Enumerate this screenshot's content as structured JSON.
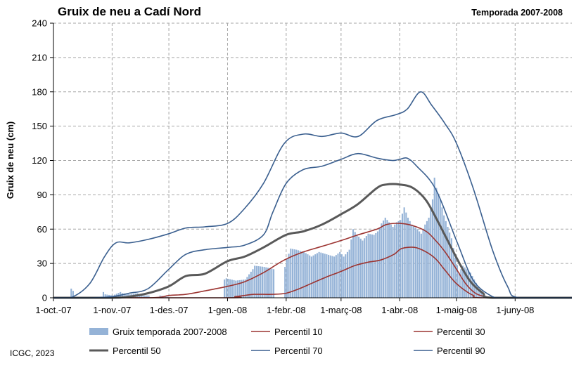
{
  "chart_data": {
    "type": "area",
    "title": "Gruix de neu a Cadí Nord",
    "subtitle": "Temporada 2007-2008",
    "ylabel": "Gruix de neu (cm)",
    "xlabel": "",
    "ylim": [
      0,
      240
    ],
    "yticks": [
      0,
      30,
      60,
      90,
      120,
      150,
      180,
      210,
      240
    ],
    "x_range": [
      "2007-10-01",
      "2008-07-01"
    ],
    "xticks": [
      {
        "date": "2007-10-01",
        "label": "1-oct.-07"
      },
      {
        "date": "2007-11-01",
        "label": "1-nov.-07"
      },
      {
        "date": "2007-12-01",
        "label": "1-des.-07"
      },
      {
        "date": "2008-01-01",
        "label": "1-gen.-08"
      },
      {
        "date": "2008-02-01",
        "label": "1-febr.-08"
      },
      {
        "date": "2008-03-01",
        "label": "1-març-08"
      },
      {
        "date": "2008-04-01",
        "label": "1-abr.-08"
      },
      {
        "date": "2008-05-01",
        "label": "1-maig-08"
      },
      {
        "date": "2008-06-01",
        "label": "1-juny-08"
      }
    ],
    "grid": true,
    "legend_position": "bottom",
    "bars": {
      "name": "Gruix temporada 2007-2008",
      "color": "#95b3d7",
      "points": [
        [
          "2007-10-10",
          8
        ],
        [
          "2007-10-11",
          6
        ],
        [
          "2007-10-26",
          1
        ],
        [
          "2007-10-27",
          5
        ],
        [
          "2007-10-28",
          3
        ],
        [
          "2007-11-01",
          2
        ],
        [
          "2007-11-05",
          5
        ],
        [
          "2007-11-06",
          4
        ],
        [
          "2007-11-10",
          3
        ],
        [
          "2007-11-14",
          4
        ],
        [
          "2007-11-15",
          3
        ],
        [
          "2007-11-16",
          2
        ],
        [
          "2007-11-20",
          2
        ],
        [
          "2007-11-26",
          2
        ],
        [
          "2007-11-30",
          1
        ],
        [
          "2007-12-30",
          16
        ],
        [
          "2007-12-31",
          17
        ],
        [
          "2008-01-05",
          15
        ],
        [
          "2008-01-10",
          16
        ],
        [
          "2008-01-14",
          25
        ],
        [
          "2008-01-15",
          28
        ],
        [
          "2008-01-20",
          27
        ],
        [
          "2008-01-25",
          25
        ],
        [
          "2008-01-31",
          27
        ],
        [
          "2008-02-01",
          34
        ],
        [
          "2008-02-03",
          43
        ],
        [
          "2008-02-06",
          42
        ],
        [
          "2008-02-10",
          40
        ],
        [
          "2008-02-14",
          36
        ],
        [
          "2008-02-18",
          40
        ],
        [
          "2008-02-22",
          38
        ],
        [
          "2008-02-26",
          36
        ],
        [
          "2008-02-29",
          40
        ],
        [
          "2008-03-02",
          36
        ],
        [
          "2008-03-05",
          42
        ],
        [
          "2008-03-07",
          60
        ],
        [
          "2008-03-09",
          55
        ],
        [
          "2008-03-12",
          50
        ],
        [
          "2008-03-15",
          56
        ],
        [
          "2008-03-18",
          55
        ],
        [
          "2008-03-20",
          58
        ],
        [
          "2008-03-22",
          65
        ],
        [
          "2008-03-24",
          70
        ],
        [
          "2008-03-26",
          66
        ],
        [
          "2008-03-28",
          62
        ],
        [
          "2008-03-30",
          66
        ],
        [
          "2008-04-01",
          68
        ],
        [
          "2008-04-03",
          79
        ],
        [
          "2008-04-05",
          70
        ],
        [
          "2008-04-07",
          64
        ],
        [
          "2008-04-10",
          60
        ],
        [
          "2008-04-12",
          56
        ],
        [
          "2008-04-14",
          64
        ],
        [
          "2008-04-16",
          70
        ],
        [
          "2008-04-18",
          86
        ],
        [
          "2008-04-19",
          105
        ],
        [
          "2008-04-20",
          96
        ],
        [
          "2008-04-22",
          86
        ],
        [
          "2008-04-24",
          72
        ],
        [
          "2008-04-26",
          62
        ],
        [
          "2008-04-28",
          52
        ],
        [
          "2008-04-30",
          35
        ],
        [
          "2008-05-02",
          22
        ],
        [
          "2008-05-04",
          28
        ],
        [
          "2008-05-06",
          25
        ],
        [
          "2008-05-08",
          22
        ],
        [
          "2008-05-10",
          16
        ],
        [
          "2008-05-12",
          10
        ],
        [
          "2008-05-14",
          5
        ],
        [
          "2008-05-16",
          2
        ]
      ]
    },
    "series": [
      {
        "name": "Percentil 10",
        "color": "#9c3431",
        "width": 1.6,
        "points": [
          [
            "2007-10-01",
            0
          ],
          [
            "2007-12-31",
            0
          ],
          [
            "2008-01-05",
            1
          ],
          [
            "2008-01-10",
            2
          ],
          [
            "2008-01-15",
            3
          ],
          [
            "2008-01-25",
            3
          ],
          [
            "2008-02-01",
            4
          ],
          [
            "2008-02-08",
            8
          ],
          [
            "2008-02-15",
            13
          ],
          [
            "2008-02-22",
            18
          ],
          [
            "2008-03-01",
            23
          ],
          [
            "2008-03-08",
            28
          ],
          [
            "2008-03-15",
            31
          ],
          [
            "2008-03-22",
            33
          ],
          [
            "2008-03-29",
            38
          ],
          [
            "2008-04-02",
            43
          ],
          [
            "2008-04-09",
            44
          ],
          [
            "2008-04-15",
            40
          ],
          [
            "2008-04-20",
            34
          ],
          [
            "2008-04-25",
            24
          ],
          [
            "2008-04-30",
            14
          ],
          [
            "2008-05-05",
            7
          ],
          [
            "2008-05-10",
            2
          ],
          [
            "2008-05-15",
            0
          ],
          [
            "2008-07-01",
            0
          ]
        ]
      },
      {
        "name": "Percentil 30",
        "color": "#9c3431",
        "width": 1.6,
        "points": [
          [
            "2007-10-01",
            0
          ],
          [
            "2007-11-20",
            0
          ],
          [
            "2007-12-01",
            2
          ],
          [
            "2007-12-10",
            3
          ],
          [
            "2007-12-20",
            6
          ],
          [
            "2008-01-01",
            10
          ],
          [
            "2008-01-10",
            14
          ],
          [
            "2008-01-20",
            22
          ],
          [
            "2008-01-31",
            33
          ],
          [
            "2008-02-10",
            40
          ],
          [
            "2008-02-20",
            45
          ],
          [
            "2008-03-01",
            50
          ],
          [
            "2008-03-10",
            55
          ],
          [
            "2008-03-20",
            60
          ],
          [
            "2008-03-25",
            64
          ],
          [
            "2008-04-01",
            65
          ],
          [
            "2008-04-08",
            63
          ],
          [
            "2008-04-15",
            58
          ],
          [
            "2008-04-20",
            50
          ],
          [
            "2008-04-25",
            40
          ],
          [
            "2008-05-01",
            25
          ],
          [
            "2008-05-06",
            12
          ],
          [
            "2008-05-11",
            4
          ],
          [
            "2008-05-16",
            1
          ],
          [
            "2008-05-20",
            0
          ],
          [
            "2008-07-01",
            0
          ]
        ]
      },
      {
        "name": "Percentil 50",
        "color": "#595959",
        "width": 3,
        "points": [
          [
            "2007-10-01",
            0
          ],
          [
            "2007-11-01",
            0
          ],
          [
            "2007-11-10",
            1
          ],
          [
            "2007-11-20",
            4
          ],
          [
            "2007-12-01",
            10
          ],
          [
            "2007-12-10",
            19
          ],
          [
            "2007-12-20",
            21
          ],
          [
            "2008-01-01",
            32
          ],
          [
            "2008-01-10",
            36
          ],
          [
            "2008-01-20",
            44
          ],
          [
            "2008-02-01",
            55
          ],
          [
            "2008-02-10",
            58
          ],
          [
            "2008-02-20",
            64
          ],
          [
            "2008-03-01",
            73
          ],
          [
            "2008-03-10",
            82
          ],
          [
            "2008-03-20",
            96
          ],
          [
            "2008-03-25",
            99
          ],
          [
            "2008-04-01",
            99
          ],
          [
            "2008-04-08",
            96
          ],
          [
            "2008-04-15",
            85
          ],
          [
            "2008-04-22",
            64
          ],
          [
            "2008-05-01",
            35
          ],
          [
            "2008-05-08",
            15
          ],
          [
            "2008-05-15",
            4
          ],
          [
            "2008-05-20",
            0
          ],
          [
            "2008-07-01",
            0
          ]
        ]
      },
      {
        "name": "Percentil 70",
        "color": "#3a5f8f",
        "width": 1.6,
        "points": [
          [
            "2007-10-01",
            0
          ],
          [
            "2007-10-20",
            0
          ],
          [
            "2007-11-01",
            1
          ],
          [
            "2007-11-10",
            4
          ],
          [
            "2007-11-20",
            8
          ],
          [
            "2007-12-01",
            25
          ],
          [
            "2007-12-10",
            38
          ],
          [
            "2007-12-20",
            42
          ],
          [
            "2008-01-01",
            44
          ],
          [
            "2008-01-10",
            46
          ],
          [
            "2008-01-20",
            55
          ],
          [
            "2008-01-25",
            75
          ],
          [
            "2008-02-01",
            100
          ],
          [
            "2008-02-10",
            112
          ],
          [
            "2008-02-20",
            115
          ],
          [
            "2008-03-01",
            121
          ],
          [
            "2008-03-10",
            126
          ],
          [
            "2008-03-20",
            122
          ],
          [
            "2008-03-28",
            120
          ],
          [
            "2008-04-01",
            121
          ],
          [
            "2008-04-05",
            122
          ],
          [
            "2008-04-10",
            115
          ],
          [
            "2008-04-20",
            95
          ],
          [
            "2008-05-01",
            50
          ],
          [
            "2008-05-10",
            15
          ],
          [
            "2008-05-20",
            1
          ],
          [
            "2008-05-25",
            0
          ],
          [
            "2008-07-01",
            0
          ]
        ]
      },
      {
        "name": "Percentil 90",
        "color": "#3a5f8f",
        "width": 1.6,
        "points": [
          [
            "2007-10-01",
            0
          ],
          [
            "2007-10-10",
            0
          ],
          [
            "2007-10-20",
            12
          ],
          [
            "2007-10-28",
            36
          ],
          [
            "2007-11-03",
            48
          ],
          [
            "2007-11-10",
            48
          ],
          [
            "2007-11-20",
            51
          ],
          [
            "2007-12-01",
            56
          ],
          [
            "2007-12-10",
            61
          ],
          [
            "2007-12-20",
            62
          ],
          [
            "2008-01-01",
            65
          ],
          [
            "2008-01-10",
            78
          ],
          [
            "2008-01-20",
            100
          ],
          [
            "2008-01-31",
            135
          ],
          [
            "2008-02-10",
            143
          ],
          [
            "2008-02-20",
            141
          ],
          [
            "2008-03-01",
            144
          ],
          [
            "2008-03-10",
            141
          ],
          [
            "2008-03-20",
            155
          ],
          [
            "2008-03-30",
            160
          ],
          [
            "2008-04-05",
            165
          ],
          [
            "2008-04-12",
            180
          ],
          [
            "2008-04-18",
            168
          ],
          [
            "2008-04-25",
            152
          ],
          [
            "2008-05-01",
            135
          ],
          [
            "2008-05-10",
            95
          ],
          [
            "2008-05-20",
            42
          ],
          [
            "2008-05-28",
            10
          ],
          [
            "2008-06-03",
            0
          ],
          [
            "2008-07-01",
            0
          ]
        ]
      }
    ],
    "legend": [
      {
        "label": "Gruix temporada 2007-2008",
        "kind": "bar",
        "color": "#95b3d7"
      },
      {
        "label": "Percentil 10",
        "kind": "line",
        "color": "#9c3431"
      },
      {
        "label": "Percentil 30",
        "kind": "line",
        "color": "#9c3431"
      },
      {
        "label": "Percentil 50",
        "kind": "line",
        "color": "#595959"
      },
      {
        "label": "Percentil 70",
        "kind": "line",
        "color": "#3a5f8f"
      },
      {
        "label": "Percentil 90",
        "kind": "line",
        "color": "#3a5f8f"
      }
    ]
  },
  "footer": {
    "credit": "ICGC, 2023"
  }
}
